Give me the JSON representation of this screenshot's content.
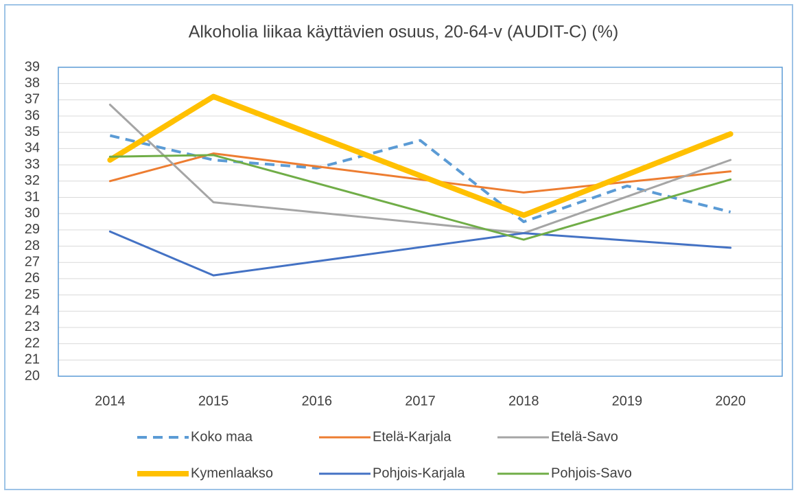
{
  "chart_data": {
    "type": "line",
    "title": "Alkoholia liikaa käyttävien osuus, 20-64-v (AUDIT-C) (%)",
    "categories": [
      "2014",
      "2015",
      "2016",
      "2017",
      "2018",
      "2019",
      "2020"
    ],
    "ylim": [
      20,
      39
    ],
    "yticks": [
      20,
      21,
      22,
      23,
      24,
      25,
      26,
      27,
      28,
      29,
      30,
      31,
      32,
      33,
      34,
      35,
      36,
      37,
      38,
      39
    ],
    "grid": true,
    "span_gaps": true,
    "legend": "bottom",
    "series": [
      {
        "name": "Koko maa",
        "color": "#5b9bd5",
        "dashed": true,
        "line_width": 4,
        "values": [
          34.8,
          33.3,
          32.8,
          34.5,
          29.5,
          31.7,
          30.1
        ]
      },
      {
        "name": "Etelä-Karjala",
        "color": "#ed7d31",
        "line_width": 3,
        "values": [
          32.0,
          33.7,
          null,
          null,
          31.3,
          null,
          32.6
        ]
      },
      {
        "name": "Etelä-Savo",
        "color": "#a5a5a5",
        "line_width": 3,
        "values": [
          36.7,
          30.7,
          null,
          null,
          28.8,
          null,
          33.3
        ]
      },
      {
        "name": "Kymenlaakso",
        "color": "#ffc000",
        "line_width": 8,
        "values": [
          33.3,
          37.2,
          null,
          null,
          29.9,
          null,
          34.9
        ]
      },
      {
        "name": "Pohjois-Karjala",
        "color": "#4472c4",
        "line_width": 3,
        "values": [
          28.9,
          26.2,
          null,
          null,
          28.8,
          null,
          27.9
        ]
      },
      {
        "name": "Pohjois-Savo",
        "color": "#70ad47",
        "line_width": 3,
        "values": [
          33.5,
          33.6,
          null,
          null,
          28.4,
          null,
          32.1
        ]
      }
    ]
  }
}
